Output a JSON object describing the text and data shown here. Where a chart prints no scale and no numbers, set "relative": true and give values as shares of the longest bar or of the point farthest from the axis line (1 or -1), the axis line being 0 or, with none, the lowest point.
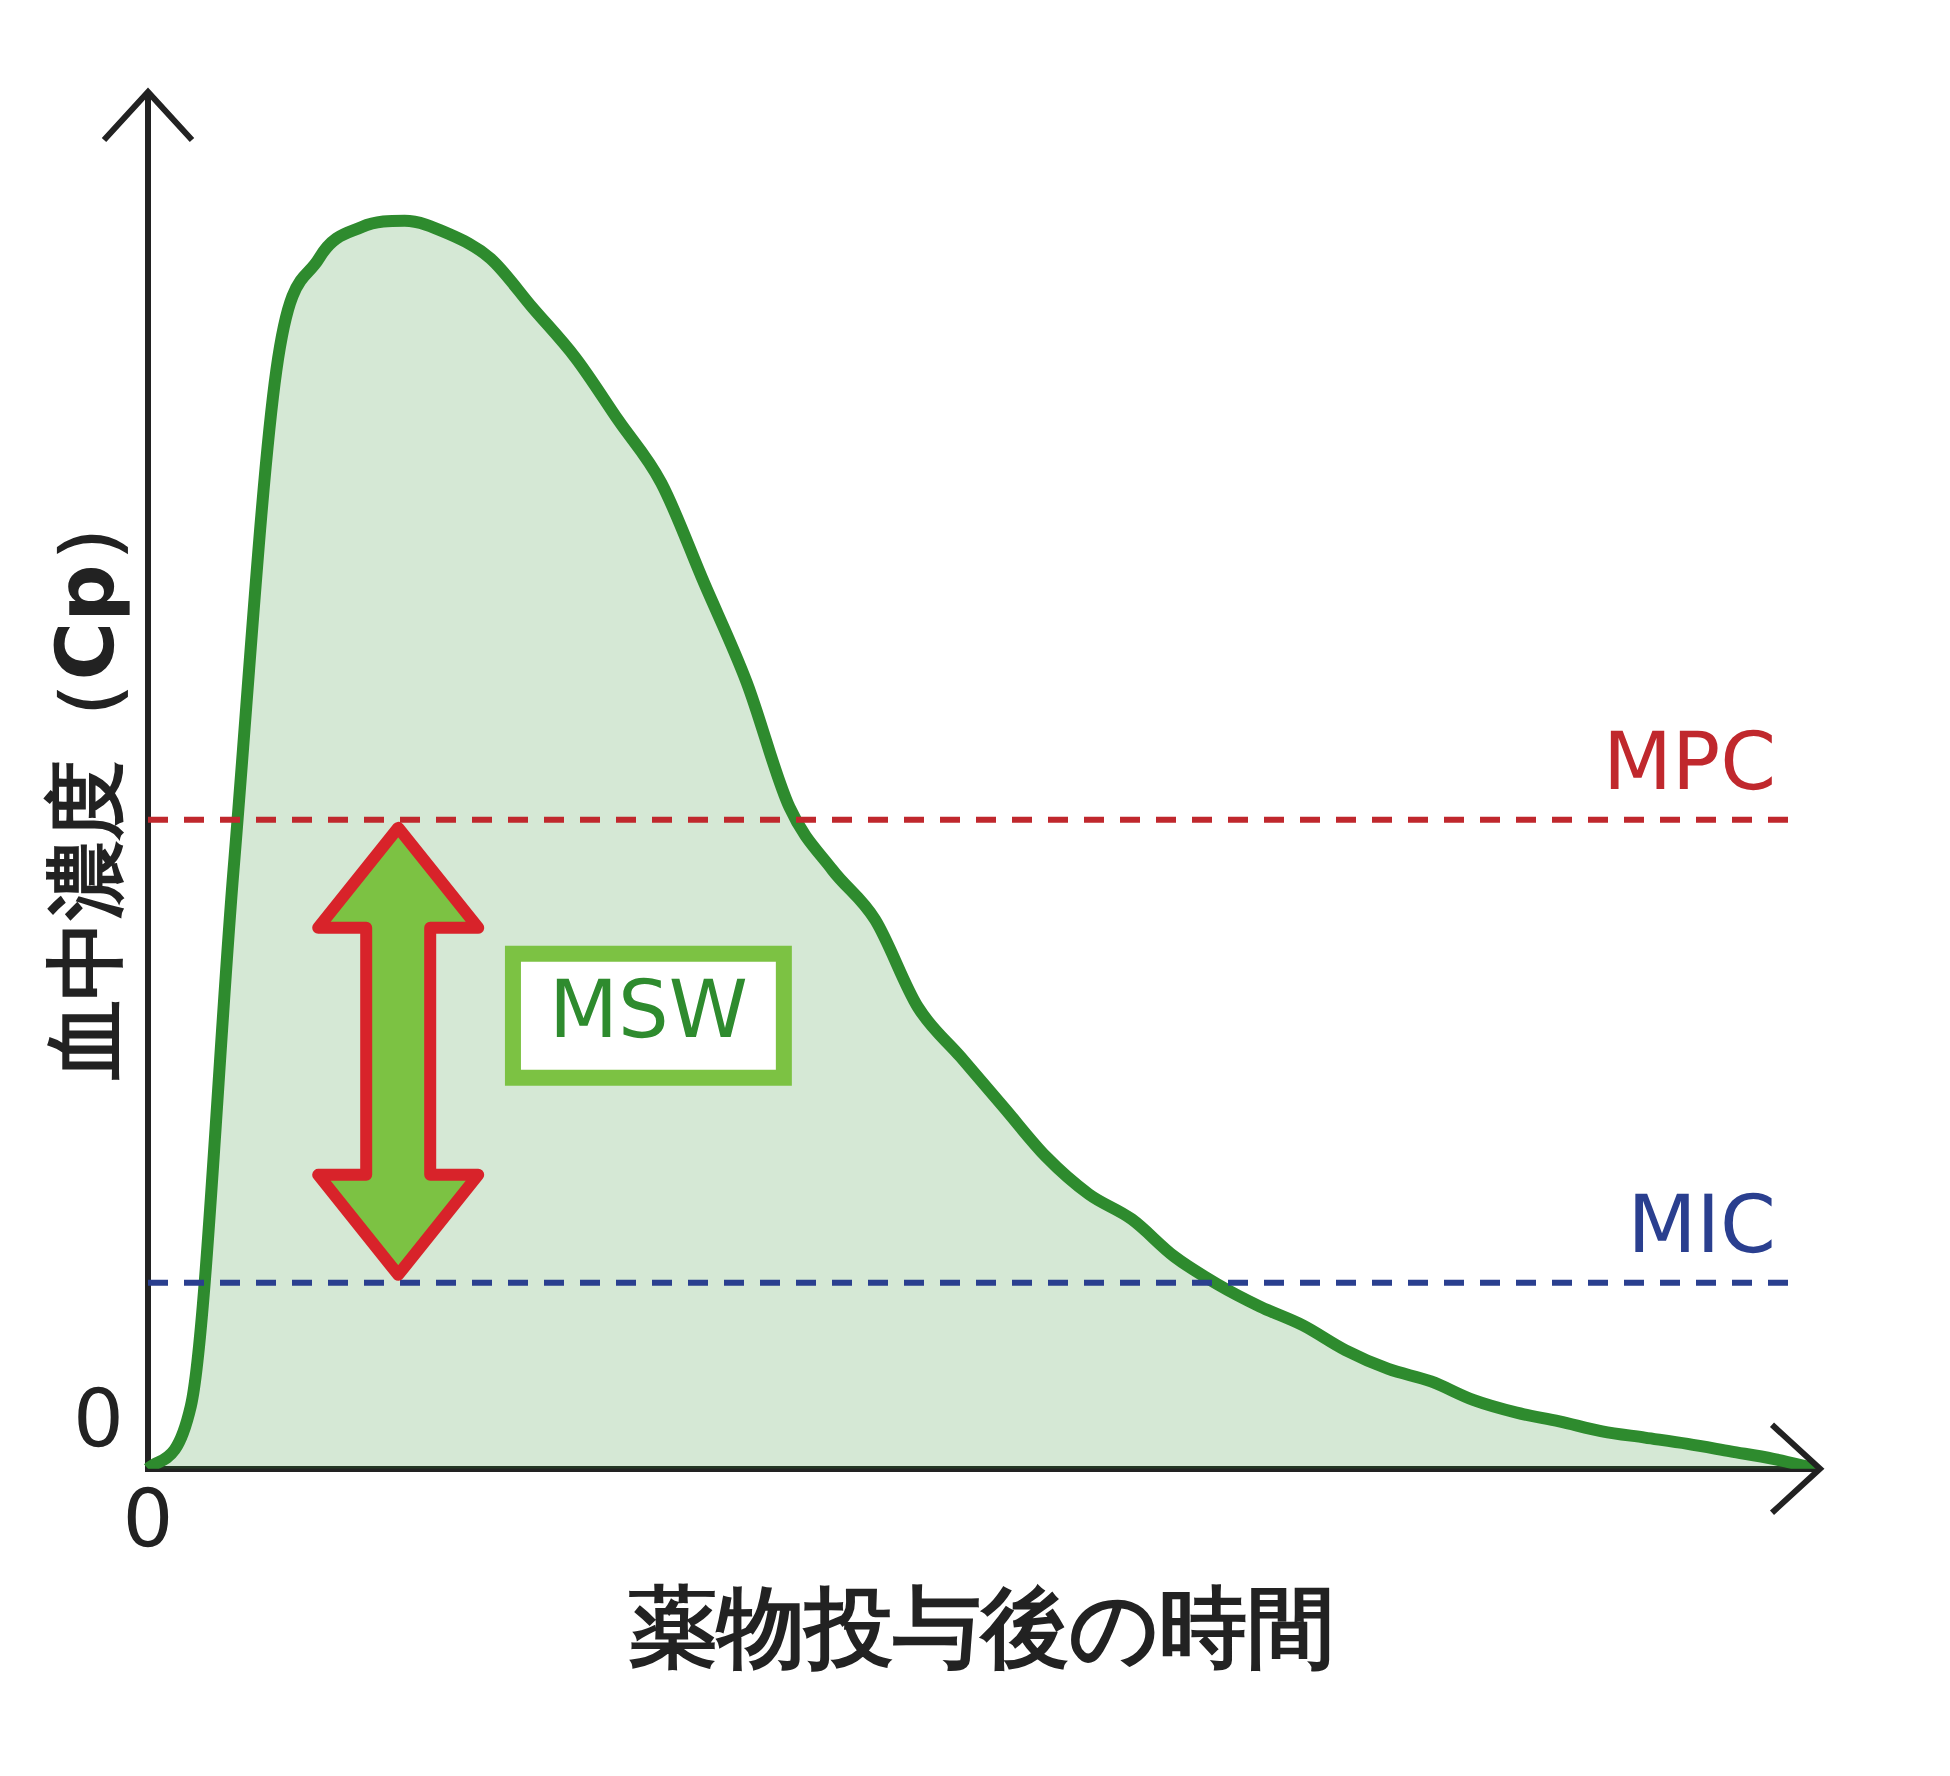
{
  "chart_data": {
    "type": "area",
    "relative": true,
    "xlabel": "薬物投与後の時間",
    "ylabel": "血中濃度（Cp）",
    "categories": [
      null,
      null,
      null,
      null,
      null,
      null,
      null,
      null,
      null,
      null,
      null,
      null,
      null,
      null,
      null,
      null,
      null,
      null,
      null,
      null,
      null,
      null,
      null,
      null,
      null,
      null,
      null,
      null,
      null,
      null,
      null,
      null,
      null,
      null,
      null,
      null,
      null,
      null,
      null,
      null
    ],
    "series": [
      {
        "color": "#2e8b2e",
        "values": [
          0,
          0.05,
          0.48,
          0.88,
          0.97,
          0.995,
          1,
          0.99,
          0.97,
          0.93,
          0.89,
          0.84,
          0.79,
          0.71,
          0.63,
          0.53,
          0.48,
          0.44,
          0.37,
          0.33,
          0.29,
          0.25,
          0.22,
          0.2,
          0.17,
          0.148,
          0.13,
          0.115,
          0.095,
          0.08,
          0.07,
          0.055,
          0.045,
          0.038,
          0.03,
          0.025,
          0.02,
          0.014,
          0.008,
          0
        ]
      }
    ],
    "ref_lines": [
      {
        "axis": "y",
        "value": 0.52,
        "label": "MPC",
        "color": "#c0282d",
        "line_style": "dashed"
      },
      {
        "axis": "y",
        "value": 0.149,
        "label": "MIC",
        "color": "#2a3f8f",
        "line_style": "dashed"
      }
    ],
    "annotations": [
      "MSW",
      "0",
      "0"
    ],
    "legend": false
  }
}
